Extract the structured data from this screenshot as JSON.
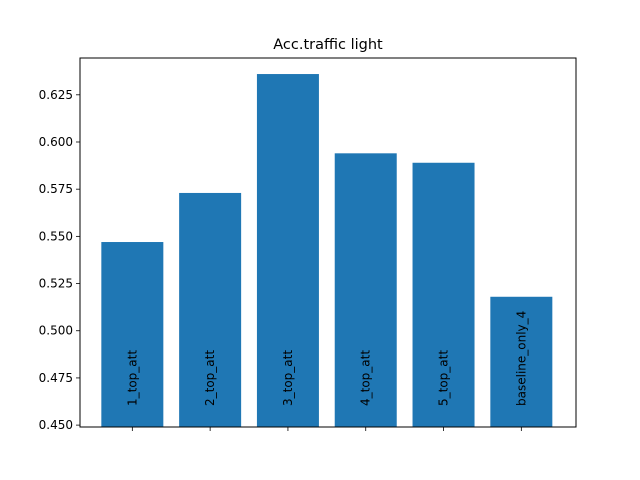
{
  "chart_data": {
    "type": "bar",
    "title": "Acc.traffic light",
    "xlabel": "",
    "ylabel": "",
    "categories": [
      "1_top_att",
      "2_top_att",
      "3_top_att",
      "4_top_att",
      "5_top_att",
      "baseline_only_4"
    ],
    "values": [
      0.547,
      0.573,
      0.636,
      0.594,
      0.589,
      0.518
    ],
    "ylim": [
      0.449,
      0.6445
    ],
    "yticks": [
      "0.450",
      "0.475",
      "0.500",
      "0.525",
      "0.550",
      "0.575",
      "0.600",
      "0.625"
    ],
    "bar_color": "#1f77b4",
    "grid": false,
    "legend": "none",
    "category_labels_inside_bars": true
  }
}
